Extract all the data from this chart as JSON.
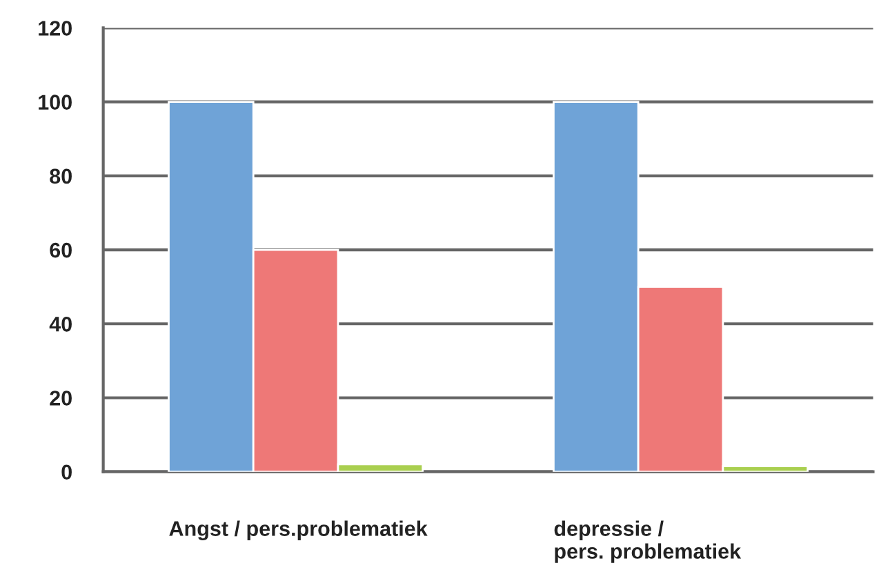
{
  "chart_data": {
    "type": "bar",
    "categories": [
      "Angst / pers.problematiek",
      "depressie /\npers. problematiek"
    ],
    "series": [
      {
        "color": "#6fa3d7",
        "values": [
          100,
          100
        ]
      },
      {
        "color": "#ee7877",
        "values": [
          60,
          50
        ]
      },
      {
        "color": "#a9cf4f",
        "values": [
          2,
          1.5
        ]
      }
    ],
    "ylim": [
      0,
      120
    ],
    "yticks": [
      0,
      20,
      40,
      60,
      80,
      100,
      120
    ],
    "grid": "y",
    "legend": false
  }
}
